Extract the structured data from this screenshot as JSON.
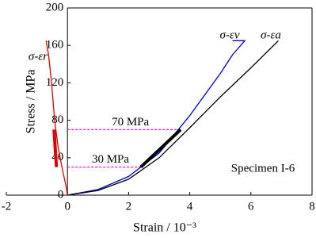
{
  "chart_data": {
    "type": "line",
    "x_label": "Strain / 10⁻³",
    "y_label": "Stress / MPa",
    "xlim": [
      -2,
      8
    ],
    "xticks": [
      -2,
      0,
      2,
      4,
      6,
      8
    ],
    "ylim": [
      0,
      200
    ],
    "yticks": [
      0,
      40,
      80,
      120,
      160,
      200
    ],
    "series": [
      {
        "name": "σ-εr",
        "color": "#e00000",
        "x": [
          0,
          -0.05,
          -0.15,
          -0.3,
          -0.42,
          -0.52,
          -0.62,
          -0.7
        ],
        "values": [
          0,
          10,
          25,
          50,
          80,
          120,
          150,
          165
        ]
      },
      {
        "name": "σ-εv",
        "color": "#0000cc",
        "x": [
          0,
          1,
          2,
          3,
          4,
          5,
          5.4,
          5.8,
          5.4
        ],
        "values": [
          0,
          6,
          20,
          45,
          85,
          130,
          150,
          165,
          165
        ]
      },
      {
        "name": "σ-εa",
        "color": "#000000",
        "x": [
          0,
          1,
          2,
          3,
          4,
          5,
          6,
          6.9
        ],
        "values": [
          0,
          5,
          17,
          40,
          72,
          105,
          136,
          165
        ]
      }
    ],
    "segments": [
      {
        "color": "#000000",
        "x": [
          2.4,
          3.7
        ],
        "values": [
          30,
          70
        ]
      },
      {
        "color": "#e00000",
        "x": [
          -0.36,
          -0.44
        ],
        "values": [
          30,
          70
        ]
      }
    ],
    "reference_lines": [
      {
        "label": "70 MPa",
        "y": 70,
        "x_end": 3.7,
        "color": "#ff00ff"
      },
      {
        "label": "30 MPa",
        "y": 30,
        "x_end": 2.4,
        "color": "#ff00ff"
      }
    ],
    "annotation": "Specimen I-6"
  }
}
